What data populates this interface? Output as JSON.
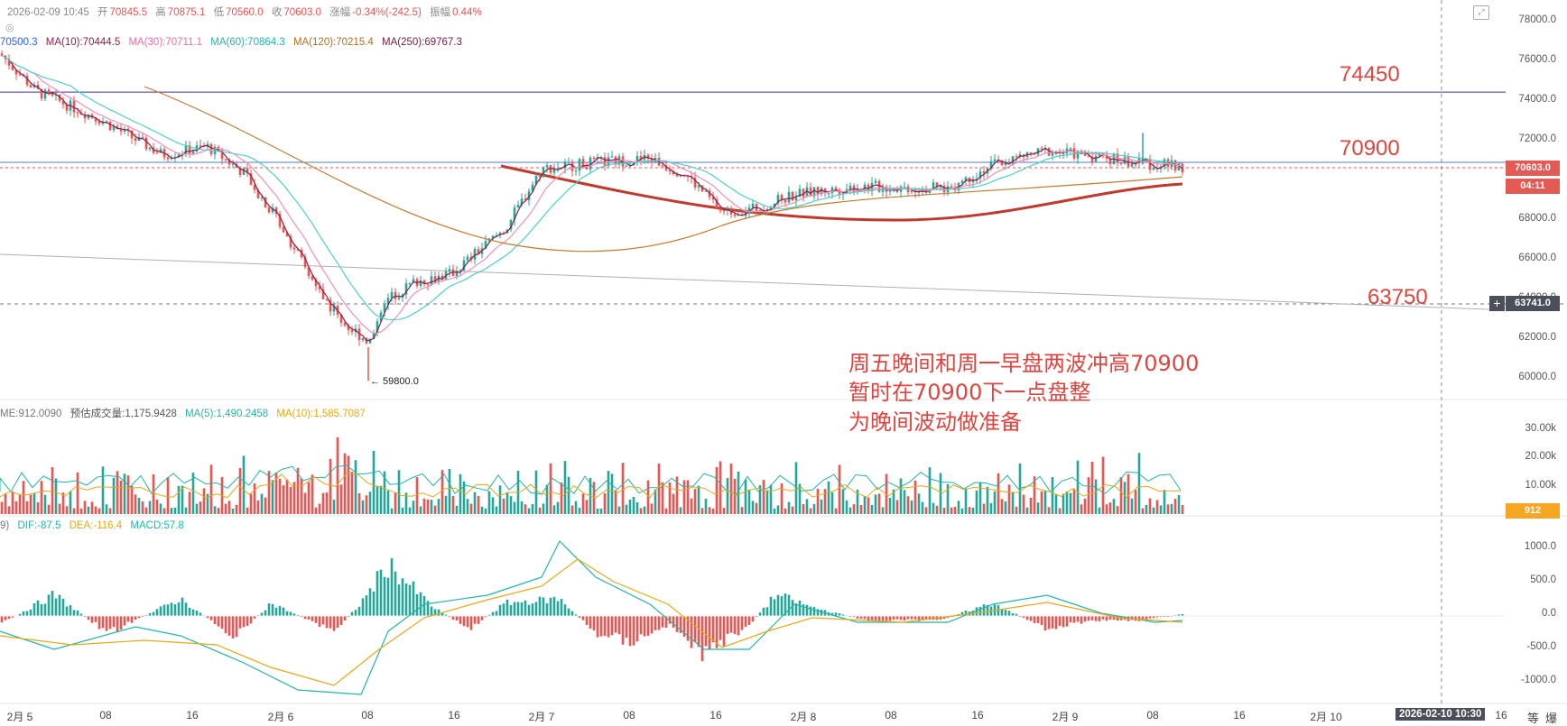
{
  "header": {
    "datetime": "2026-02-09 10:45",
    "open_label": "开",
    "open": "70845.5",
    "high_label": "高",
    "high": "70875.1",
    "low_label": "低",
    "low": "70560.0",
    "close_label": "收",
    "close": "70603.0",
    "change_label": "涨幅",
    "change": "-0.34%(-242.5)",
    "amplitude_label": "振幅",
    "amplitude": "0.44%"
  },
  "ma_legend": {
    "ma5": "70500.3",
    "ma10": "MA(10):70444.5",
    "ma30": "MA(30):70711.1",
    "ma60": "MA(60):70864.3",
    "ma120": "MA(120):70215.4",
    "ma250": "MA(250):69767.3"
  },
  "volume_legend": {
    "vol": "ME:912.0090",
    "est": "预估成交量:1,175.9428",
    "ma5": "MA(5):1,490.2458",
    "ma10": "MA(10):1,585.7087"
  },
  "macd_legend": {
    "params": "9)",
    "dif": "DIF:-87.5",
    "dea": "DEA:-116.4",
    "macd": "MACD:57.8"
  },
  "levels": {
    "l1": "74450",
    "l2": "70900",
    "l3": "63750"
  },
  "low_marker": "← 59800.0",
  "note": [
    "周五晚间和周一早盘两波冲高70900",
    "暂时在70900下一点盘整",
    "为晚间波动做准备"
  ],
  "price_tags": {
    "last": "70603.0",
    "countdown": "04:11",
    "crosshair": "63741.0",
    "volume": "912"
  },
  "price_axis": [
    "78000.0",
    "76000.0",
    "74000.0",
    "72000.0",
    "68000.0",
    "66000.0",
    "64000.0",
    "62000.0",
    "60000.0"
  ],
  "volume_axis": [
    "30.00k",
    "20.00k",
    "10.00k"
  ],
  "macd_axis": [
    "1000.0",
    "500.0",
    "0.0",
    "-500.0",
    "-1000.0"
  ],
  "time_axis": [
    "2月 5",
    "08",
    "16",
    "2月 6",
    "08",
    "16",
    "2月 7",
    "08",
    "16",
    "2月 8",
    "08",
    "16",
    "2月 9",
    "08",
    "16",
    "2月 10",
    "16"
  ],
  "crosshair_time": "2026-02-10 10:30",
  "corner_icons": [
    "等",
    "爆"
  ],
  "colors": {
    "up": "#26a69a",
    "down": "#ef5350",
    "ma5": "#2962ff",
    "ma10": "#8e1f4a",
    "ma30": "#f48fb1",
    "ma60": "#4dd0c8",
    "ma120": "#c47a2c",
    "accent": "#e0443e"
  }
}
